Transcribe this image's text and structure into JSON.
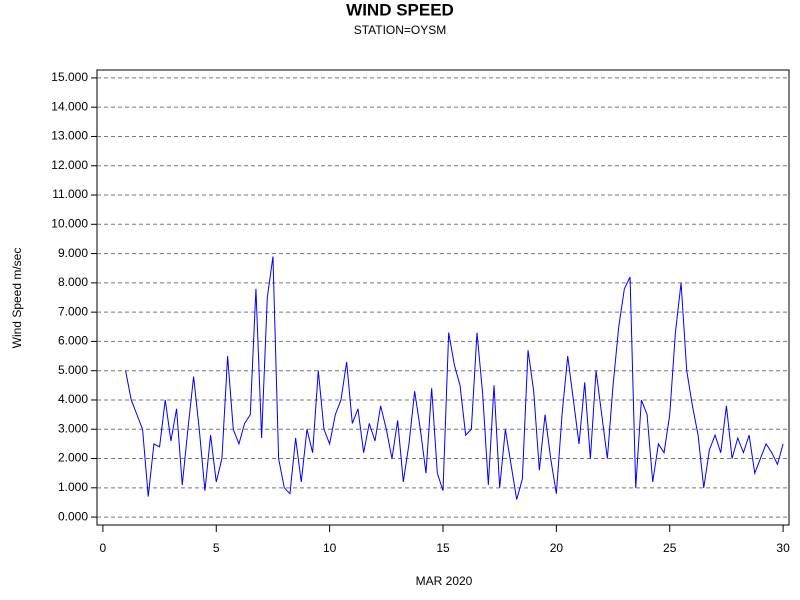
{
  "chart_data": {
    "type": "line",
    "title": "WIND SPEED",
    "subtitle": "STATION=OYSM",
    "y_label": "Wind Speed m/sec",
    "x_label": "MAR 2020",
    "color": "#0000ff",
    "grid": true,
    "xlim": [
      -0.26,
      30.26
    ],
    "ylim": [
      -0.27,
      15.27
    ],
    "xticks": [
      0,
      5,
      10,
      15,
      20,
      25,
      30
    ],
    "yticks": [
      {
        "value": 0,
        "label": "0.000"
      },
      {
        "value": 1,
        "label": "1.000"
      },
      {
        "value": 2,
        "label": "2.000"
      },
      {
        "value": 3,
        "label": "3.000"
      },
      {
        "value": 4,
        "label": "4.000"
      },
      {
        "value": 5,
        "label": "5.000"
      },
      {
        "value": 6,
        "label": "6.000"
      },
      {
        "value": 7,
        "label": "7.000"
      },
      {
        "value": 8,
        "label": "8.000"
      },
      {
        "value": 9,
        "label": "9.000"
      },
      {
        "value": 10,
        "label": "10.000"
      },
      {
        "value": 11,
        "label": "11.000"
      },
      {
        "value": 12,
        "label": "12.000"
      },
      {
        "value": 13,
        "label": "13.000"
      },
      {
        "value": 14,
        "label": "14.000"
      },
      {
        "value": 15,
        "label": "15.000"
      }
    ],
    "x": [
      1,
      1.25,
      1.5,
      1.75,
      2,
      2.25,
      2.5,
      2.75,
      3,
      3.25,
      3.5,
      3.75,
      4,
      4.25,
      4.5,
      4.75,
      5,
      5.25,
      5.5,
      5.75,
      6,
      6.25,
      6.5,
      6.75,
      7,
      7.25,
      7.5,
      7.75,
      8,
      8.25,
      8.5,
      8.75,
      9,
      9.25,
      9.5,
      9.75,
      10,
      10.25,
      10.5,
      10.75,
      11,
      11.25,
      11.5,
      11.75,
      12,
      12.25,
      12.5,
      12.75,
      13,
      13.25,
      13.5,
      13.75,
      14,
      14.25,
      14.5,
      14.75,
      15,
      15.25,
      15.5,
      15.75,
      16,
      16.25,
      16.5,
      16.75,
      17,
      17.25,
      17.5,
      17.75,
      18,
      18.25,
      18.5,
      18.75,
      19,
      19.25,
      19.5,
      19.75,
      20,
      20.25,
      20.5,
      20.75,
      21,
      21.25,
      21.5,
      21.75,
      22,
      22.25,
      22.5,
      22.75,
      23,
      23.25,
      23.5,
      23.75,
      24,
      24.25,
      24.5,
      24.75,
      25,
      25.25,
      25.5,
      25.75,
      26,
      26.25,
      26.5,
      26.75,
      27,
      27.25,
      27.5,
      27.75,
      28,
      28.25,
      28.5,
      28.75,
      29,
      29.25,
      29.5,
      29.75,
      30
    ],
    "values": [
      5.0,
      4.0,
      3.5,
      3.0,
      0.7,
      2.5,
      2.4,
      4.0,
      2.6,
      3.7,
      1.1,
      3.0,
      4.8,
      3.0,
      0.9,
      2.8,
      1.2,
      2.0,
      5.5,
      3.0,
      2.5,
      3.2,
      3.5,
      7.8,
      2.7,
      7.5,
      8.9,
      2.0,
      1.0,
      0.8,
      2.7,
      1.2,
      3.0,
      2.2,
      5.0,
      3.0,
      2.5,
      3.5,
      4.0,
      5.3,
      3.2,
      3.7,
      2.2,
      3.2,
      2.6,
      3.8,
      3.0,
      2.0,
      3.3,
      1.2,
      2.5,
      4.3,
      3.0,
      1.5,
      4.4,
      1.5,
      0.9,
      6.3,
      5.2,
      4.5,
      2.8,
      3.0,
      6.3,
      4.2,
      1.1,
      4.5,
      1.0,
      3.0,
      1.8,
      0.6,
      1.3,
      5.7,
      4.3,
      1.6,
      3.5,
      2.0,
      0.8,
      3.5,
      5.5,
      4.0,
      2.5,
      4.6,
      2.0,
      5.0,
      3.5,
      2.0,
      4.5,
      6.5,
      7.8,
      8.2,
      1.0,
      4.0,
      3.5,
      1.2,
      2.5,
      2.2,
      3.5,
      6.3,
      8.0,
      5.0,
      3.8,
      2.8,
      1.0,
      2.3,
      2.8,
      2.2,
      3.8,
      2.0,
      2.7,
      2.2,
      2.8,
      1.5,
      2.0,
      2.5,
      2.2,
      1.8,
      2.5
    ]
  }
}
